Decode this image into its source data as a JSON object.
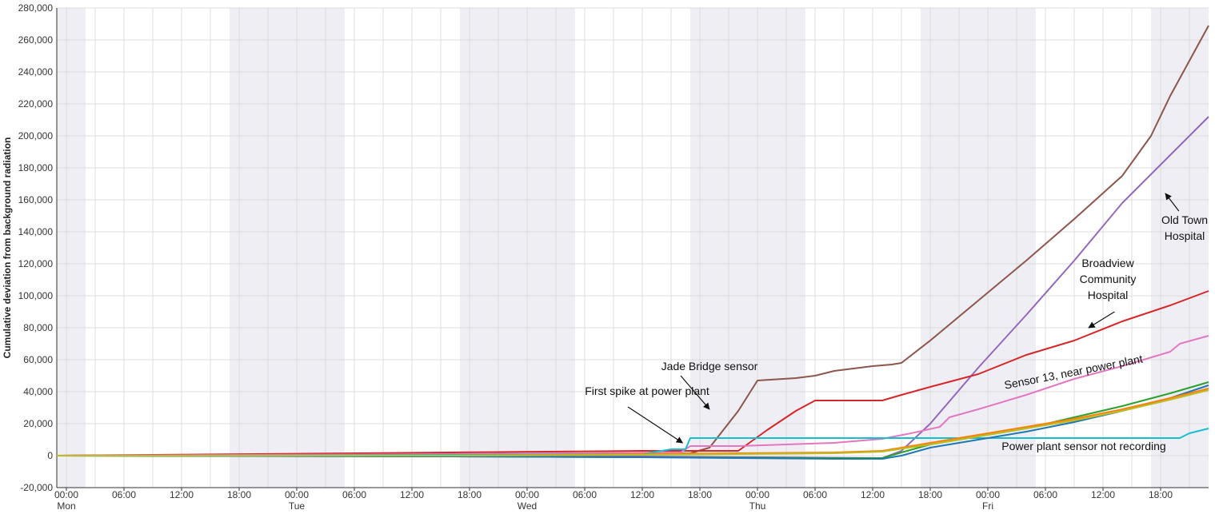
{
  "chart_data": {
    "type": "line",
    "title": "",
    "xlabel": "",
    "ylabel": "Cumulative deviation from background radiation",
    "ylim": [
      -20000,
      280000
    ],
    "y_ticks": [
      -20000,
      0,
      20000,
      40000,
      60000,
      80000,
      100000,
      120000,
      140000,
      160000,
      180000,
      200000,
      220000,
      240000,
      260000,
      280000
    ],
    "y_tick_labels": [
      "-20,000",
      "0",
      "20,000",
      "40,000",
      "60,000",
      "80,000",
      "100,000",
      "120,000",
      "140,000",
      "160,000",
      "180,000",
      "200,000",
      "220,000",
      "240,000",
      "260,000",
      "280,000"
    ],
    "x_unit": "hours since Mon 00:00",
    "xlim": [
      -1,
      119
    ],
    "grid": true,
    "gridline_every_hours": 3,
    "night_shading_hours": [
      [
        -1,
        2
      ],
      [
        17,
        29
      ],
      [
        41,
        53
      ],
      [
        65,
        77
      ],
      [
        89,
        101
      ],
      [
        113,
        119
      ]
    ],
    "x_time_labels": [
      {
        "x": 0,
        "label": "00:00"
      },
      {
        "x": 6,
        "label": "06:00"
      },
      {
        "x": 12,
        "label": "12:00"
      },
      {
        "x": 18,
        "label": "18:00"
      },
      {
        "x": 24,
        "label": "00:00"
      },
      {
        "x": 30,
        "label": "06:00"
      },
      {
        "x": 36,
        "label": "12:00"
      },
      {
        "x": 42,
        "label": "18:00"
      },
      {
        "x": 48,
        "label": "00:00"
      },
      {
        "x": 54,
        "label": "06:00"
      },
      {
        "x": 60,
        "label": "12:00"
      },
      {
        "x": 66,
        "label": "18:00"
      },
      {
        "x": 72,
        "label": "00:00"
      },
      {
        "x": 78,
        "label": "06:00"
      },
      {
        "x": 84,
        "label": "12:00"
      },
      {
        "x": 90,
        "label": "18:00"
      },
      {
        "x": 96,
        "label": "00:00"
      },
      {
        "x": 102,
        "label": "06:00"
      },
      {
        "x": 108,
        "label": "12:00"
      },
      {
        "x": 114,
        "label": "18:00"
      }
    ],
    "x_day_labels": [
      {
        "x": 0,
        "label": "Mon"
      },
      {
        "x": 24,
        "label": "Tue"
      },
      {
        "x": 48,
        "label": "Wed"
      },
      {
        "x": 72,
        "label": "Thu"
      },
      {
        "x": 96,
        "label": "Fri"
      }
    ],
    "series": [
      {
        "color": "#8c564b",
        "x": [
          -1,
          20,
          65,
          67,
          70,
          72,
          76,
          78,
          80,
          84,
          86,
          87,
          90,
          95,
          100,
          105,
          110,
          113,
          115,
          119
        ],
        "y": [
          0,
          500,
          1500,
          5000,
          28000,
          47000,
          48500,
          50000,
          53000,
          56000,
          57000,
          58000,
          72000,
          97000,
          122000,
          148000,
          175000,
          200000,
          225000,
          269000
        ]
      },
      {
        "color": "#9467bd",
        "x": [
          -1,
          60,
          85,
          87,
          90,
          95,
          100,
          105,
          110,
          115,
          119
        ],
        "y": [
          0,
          -500,
          -1500,
          3000,
          20000,
          55000,
          88000,
          122000,
          158000,
          188000,
          212000
        ]
      },
      {
        "color": "#d62728",
        "x": [
          -1,
          20,
          40,
          60,
          70,
          73,
          76,
          78,
          85,
          87,
          90,
          95,
          100,
          105,
          110,
          115,
          119
        ],
        "y": [
          0,
          1000,
          2000,
          3000,
          3000,
          16000,
          28000,
          34500,
          34500,
          38000,
          43000,
          51000,
          63000,
          72000,
          84000,
          94000,
          103000
        ]
      },
      {
        "color": "#e377c2",
        "x": [
          -1,
          40,
          64,
          65,
          70,
          80,
          85,
          88,
          91,
          92,
          95,
          100,
          105,
          110,
          115,
          116,
          119
        ],
        "y": [
          0,
          1000,
          2000,
          6000,
          6000,
          8000,
          10500,
          14000,
          18000,
          24000,
          29000,
          38000,
          48000,
          56000,
          65000,
          70000,
          75000
        ]
      },
      {
        "color": "#17becf",
        "x": [
          -1,
          20,
          60,
          63,
          64.5,
          65,
          70,
          80,
          85,
          90,
          95,
          100,
          110,
          116,
          117,
          119
        ],
        "y": [
          0,
          0,
          1000,
          4000,
          4000,
          11000,
          11000,
          11000,
          11000,
          11000,
          11000,
          11000,
          11000,
          11000,
          14000,
          17000
        ]
      },
      {
        "color": "#2ca02c",
        "x": [
          -1,
          40,
          60,
          80,
          85,
          87,
          90,
          95,
          100,
          105,
          110,
          115,
          119
        ],
        "y": [
          0,
          -500,
          -1000,
          -1500,
          -1500,
          2000,
          7000,
          12000,
          17000,
          24000,
          31000,
          39000,
          46000
        ]
      },
      {
        "color": "#1f77b4",
        "x": [
          -1,
          40,
          60,
          80,
          85,
          87,
          90,
          95,
          100,
          105,
          110,
          115,
          119
        ],
        "y": [
          0,
          -500,
          -1000,
          -2000,
          -2000,
          0,
          5000,
          10000,
          15000,
          21000,
          28000,
          36000,
          44000
        ]
      },
      {
        "color": "#ff7f0e",
        "x": [
          -1,
          40,
          60,
          80,
          85,
          90,
          95,
          100,
          105,
          110,
          115,
          119
        ],
        "y": [
          0,
          0,
          1000,
          2000,
          3000,
          8000,
          13000,
          18000,
          23000,
          29000,
          36000,
          42000
        ]
      },
      {
        "color": "#bcbd22",
        "x": [
          -1,
          40,
          60,
          80,
          85,
          90,
          95,
          100,
          105,
          110,
          115,
          119
        ],
        "y": [
          0,
          0,
          500,
          1500,
          2500,
          7000,
          12000,
          17000,
          22000,
          28000,
          35000,
          41000
        ]
      }
    ],
    "annotations": [
      {
        "id": "old-town",
        "lines": [
          "Old Town",
          "Hospital"
        ],
        "text_x": 116.5,
        "text_y": 145000,
        "arrow_from": [
          115.9,
          153000
        ],
        "arrow_to": [
          114.5,
          164000
        ]
      },
      {
        "id": "broadview",
        "lines": [
          "Broadview",
          "Community",
          "Hospital"
        ],
        "text_x": 108.5,
        "text_y": 118000,
        "arrow_from": [
          109.2,
          90000
        ],
        "arrow_to": [
          106.5,
          80000
        ]
      },
      {
        "id": "sensor13",
        "lines": [
          "Sensor 13, near power plant"
        ],
        "text_x": 105,
        "text_y": 50000,
        "rotate": -11
      },
      {
        "id": "jade-bridge",
        "lines": [
          "Jade Bridge sensor"
        ],
        "text_x": 67,
        "text_y": 53500,
        "arrow_from": [
          64,
          50000
        ],
        "arrow_to": [
          67,
          29000
        ]
      },
      {
        "id": "first-spike",
        "lines": [
          "First spike at power plant"
        ],
        "text_x": 60.5,
        "text_y": 38000,
        "arrow_from": [
          58.5,
          30500
        ],
        "arrow_to": [
          64.2,
          8000
        ]
      },
      {
        "id": "not-recording",
        "lines": [
          "Power plant sensor not recording"
        ],
        "text_x": 106,
        "text_y": 3500
      }
    ]
  }
}
